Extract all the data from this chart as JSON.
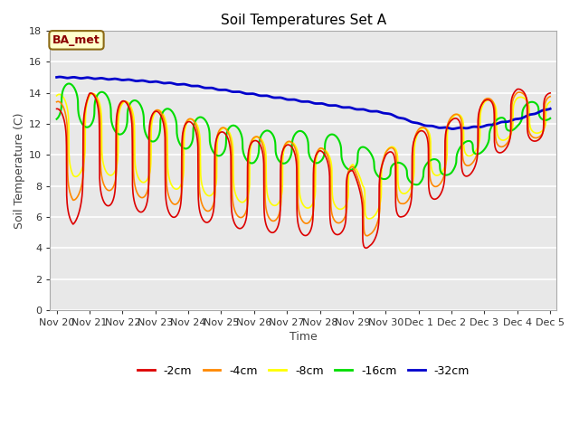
{
  "title": "Soil Temperatures Set A",
  "xlabel": "Time",
  "ylabel": "Soil Temperature (C)",
  "annotation": "BA_met",
  "ylim": [
    0,
    18
  ],
  "yticks": [
    0,
    2,
    4,
    6,
    8,
    10,
    12,
    14,
    16,
    18
  ],
  "series_labels": [
    "-2cm",
    "-4cm",
    "-8cm",
    "-16cm",
    "-32cm"
  ],
  "series_colors": [
    "#dd0000",
    "#ff8800",
    "#ffff00",
    "#00dd00",
    "#0000cc"
  ],
  "series_linewidths": [
    1.2,
    1.2,
    1.2,
    1.5,
    2.0
  ],
  "tick_dates": [
    "Nov 20",
    "Nov 21",
    "Nov 22",
    "Nov 23",
    "Nov 24",
    "Nov 25",
    "Nov 26",
    "Nov 27",
    "Nov 28",
    "Nov 29",
    "Nov 30",
    "Dec 1",
    "Dec 2",
    "Dec 3",
    "Dec 4",
    "Dec 5"
  ],
  "n_points": 2160,
  "fig_width": 6.4,
  "fig_height": 4.8,
  "dpi": 100
}
